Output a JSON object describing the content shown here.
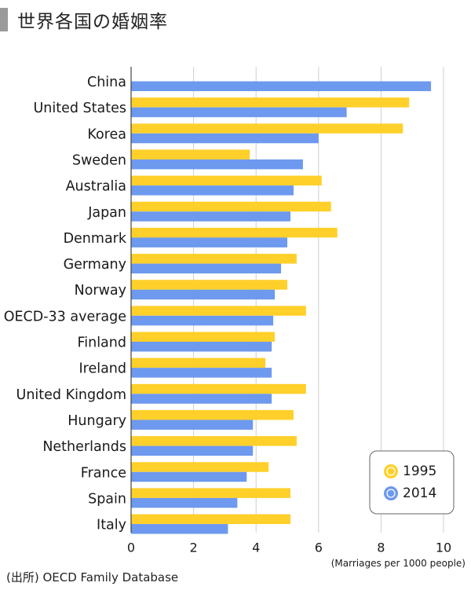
{
  "title": "世界各国の婚姻率",
  "source": "(出所) OECD Family Database",
  "chart_data": {
    "type": "bar",
    "orientation": "horizontal",
    "categories": [
      "China",
      "United States",
      "Korea",
      "Sweden",
      "Australia",
      "Japan",
      "Denmark",
      "Germany",
      "Norway",
      "OECD-33 average",
      "Finland",
      "Ireland",
      "United Kingdom",
      "Hungary",
      "Netherlands",
      "France",
      "Spain",
      "Italy"
    ],
    "series": [
      {
        "name": "1995",
        "color": "#ffd02a",
        "values": [
          null,
          8.9,
          8.7,
          3.8,
          6.1,
          6.4,
          6.6,
          5.3,
          5.0,
          5.6,
          4.6,
          4.3,
          5.6,
          5.2,
          5.3,
          4.4,
          5.1,
          5.1
        ]
      },
      {
        "name": "2014",
        "color": "#6d99ee",
        "values": [
          9.6,
          6.9,
          6.0,
          5.5,
          5.2,
          5.1,
          5.0,
          4.8,
          4.6,
          4.55,
          4.5,
          4.5,
          4.5,
          3.9,
          3.9,
          3.7,
          3.4,
          3.1
        ]
      }
    ],
    "xlim": [
      0,
      10
    ],
    "xticks": [
      "0",
      "2",
      "4",
      "6",
      "8",
      "10"
    ],
    "xlabel": "(Marriages per 1000 people)",
    "grid": true,
    "legend": "bottom-right"
  }
}
